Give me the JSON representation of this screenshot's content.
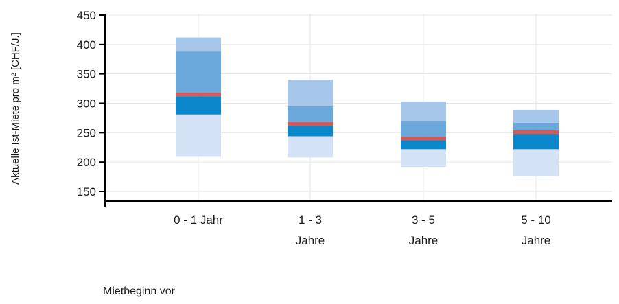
{
  "chart_data": {
    "type": "box",
    "categories": [
      {
        "line1": "0 - 1 Jahr",
        "line2": ""
      },
      {
        "line1": "1 - 3",
        "line2": "Jahre"
      },
      {
        "line1": "3 - 5",
        "line2": "Jahre"
      },
      {
        "line1": "5 - 10",
        "line2": "Jahre"
      }
    ],
    "series": [
      {
        "bounds": [
          209,
          281,
          312,
          318,
          388,
          412
        ]
      },
      {
        "bounds": [
          208,
          244,
          262,
          268,
          295,
          340
        ]
      },
      {
        "bounds": [
          192,
          222,
          237,
          243,
          269,
          303
        ]
      },
      {
        "bounds": [
          176,
          222,
          248,
          254,
          267,
          289
        ]
      }
    ],
    "band_colors": [
      "#d3e2f4",
      "#0a87ca",
      "#e05451",
      "#6aa7da",
      "#a6c7ea"
    ],
    "ylabel": "Aktuelle Ist-Miete pro m² [CHF/J.]",
    "xlabel": "Mietbeginn vor",
    "yticks": [
      150,
      200,
      250,
      300,
      350,
      400,
      450
    ],
    "ylim": [
      140,
      450
    ],
    "grid": true
  }
}
